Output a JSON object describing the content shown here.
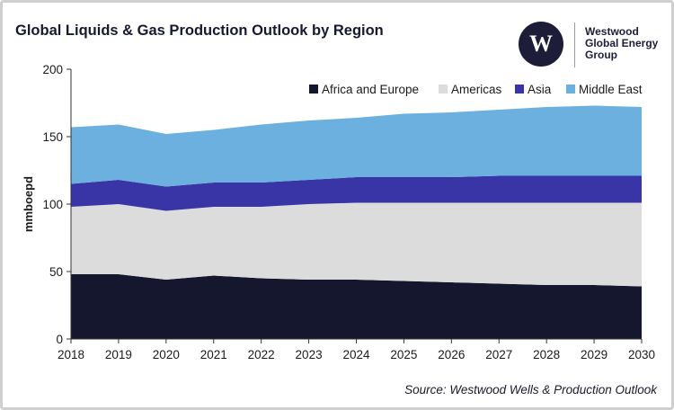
{
  "header": {
    "title": "Global Liquids & Gas Production Outlook by Region"
  },
  "logo": {
    "mark": "W",
    "lines": [
      "Westwood",
      "Global Energy",
      "Group"
    ]
  },
  "footer": {
    "source": "Source: Westwood Wells & Production Outlook"
  },
  "colors": {
    "africa_europe": "#15172e",
    "americas": "#dcdcdc",
    "asia": "#3a35a6",
    "middle_east": "#6bb0de",
    "axis": "#333333"
  },
  "chart_data": {
    "type": "area",
    "stacked": true,
    "title": "Global Liquids & Gas Production Outlook by Region",
    "xlabel": "",
    "ylabel": "mmboepd",
    "ylim": [
      0,
      200
    ],
    "yticks": [
      "0",
      "50",
      "100",
      "150",
      "200"
    ],
    "x": [
      "2018",
      "2019",
      "2020",
      "2021",
      "2022",
      "2023",
      "2024",
      "2025",
      "2026",
      "2027",
      "2028",
      "2029",
      "2030"
    ],
    "legend_position": "top-right",
    "series": [
      {
        "name": "Africa and Europe",
        "color_key": "africa_europe",
        "values": [
          48,
          48,
          44,
          47,
          45,
          44,
          44,
          43,
          42,
          41,
          40,
          40,
          39
        ]
      },
      {
        "name": "Americas",
        "color_key": "americas",
        "values": [
          50,
          52,
          51,
          51,
          53,
          56,
          57,
          58,
          59,
          60,
          61,
          61,
          62
        ]
      },
      {
        "name": "Asia",
        "color_key": "asia",
        "values": [
          17,
          18,
          18,
          18,
          18,
          18,
          19,
          19,
          19,
          20,
          20,
          20,
          20
        ]
      },
      {
        "name": "Middle East",
        "color_key": "middle_east",
        "values": [
          42,
          41,
          39,
          39,
          43,
          44,
          44,
          47,
          48,
          49,
          51,
          52,
          51
        ]
      }
    ]
  }
}
